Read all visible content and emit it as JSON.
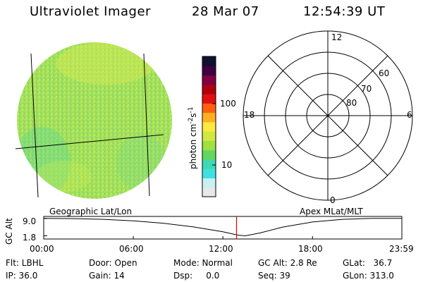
{
  "header": {
    "instrument": "Ultraviolet Imager",
    "date": "28 Mar 07",
    "time": "12:54:39 UT"
  },
  "colorbar": {
    "unit_label": "photon cm",
    "unit_exp1": "-2",
    "unit_s": "s",
    "unit_exp2": "-1",
    "ticks": [
      "100",
      "10"
    ],
    "colors": [
      "#e8e8e8",
      "#c8f0f0",
      "#40e0e0",
      "#40d8b0",
      "#60d860",
      "#a0e040",
      "#d0e840",
      "#ffe840",
      "#ffb020",
      "#ff6010",
      "#e01010",
      "#b00010",
      "#800040",
      "#400040",
      "#101030"
    ]
  },
  "globe": {
    "fill": "#9ee05a"
  },
  "polar": {
    "mlt_labels": [
      "12",
      "18",
      "6",
      "0"
    ],
    "lat_labels": [
      "60",
      "70",
      "80"
    ]
  },
  "timeline": {
    "left_title": "Geographic Lat/Lon",
    "right_title": "Apex MLat/MLT",
    "y_axis_label": "GC Alt",
    "y_ticks": [
      "9.0",
      "1.8"
    ],
    "x_ticks": [
      "00:00",
      "06:00",
      "12:00",
      "18:00",
      "23:59"
    ]
  },
  "info": {
    "flt": "Flt: LBHL",
    "ip": "IP: 36.0",
    "door": "Door: Open",
    "gain": "Gain: 14",
    "mode": "Mode: Normal",
    "dsp": "Dsp:     0.0",
    "gcalt": "GC Alt: 2.8 Re",
    "seq": "Seq: 39",
    "glat": "GLat:   36.7",
    "glon": "GLon: 313.0"
  },
  "chart_data": {
    "type": "line",
    "title": "",
    "xlabel": "",
    "ylabel": "GC Alt",
    "x_ticks": [
      "00:00",
      "06:00",
      "12:00",
      "18:00",
      "23:59"
    ],
    "y_ticks": [
      9.0,
      1.8
    ],
    "series": [
      {
        "x": [
          "00:00",
          "02:00",
          "04:00",
          "06:00",
          "08:00",
          "10:00",
          "12:00",
          "13:00",
          "13:30",
          "14:30",
          "16:00",
          "18:00",
          "20:00",
          "22:00",
          "23:59"
        ],
        "values": [
          9.0,
          8.9,
          8.6,
          8.0,
          7.0,
          5.5,
          3.5,
          2.1,
          1.8,
          3.0,
          5.4,
          7.5,
          8.6,
          9.0,
          9.0
        ]
      }
    ],
    "current_time": "12:54:39"
  }
}
